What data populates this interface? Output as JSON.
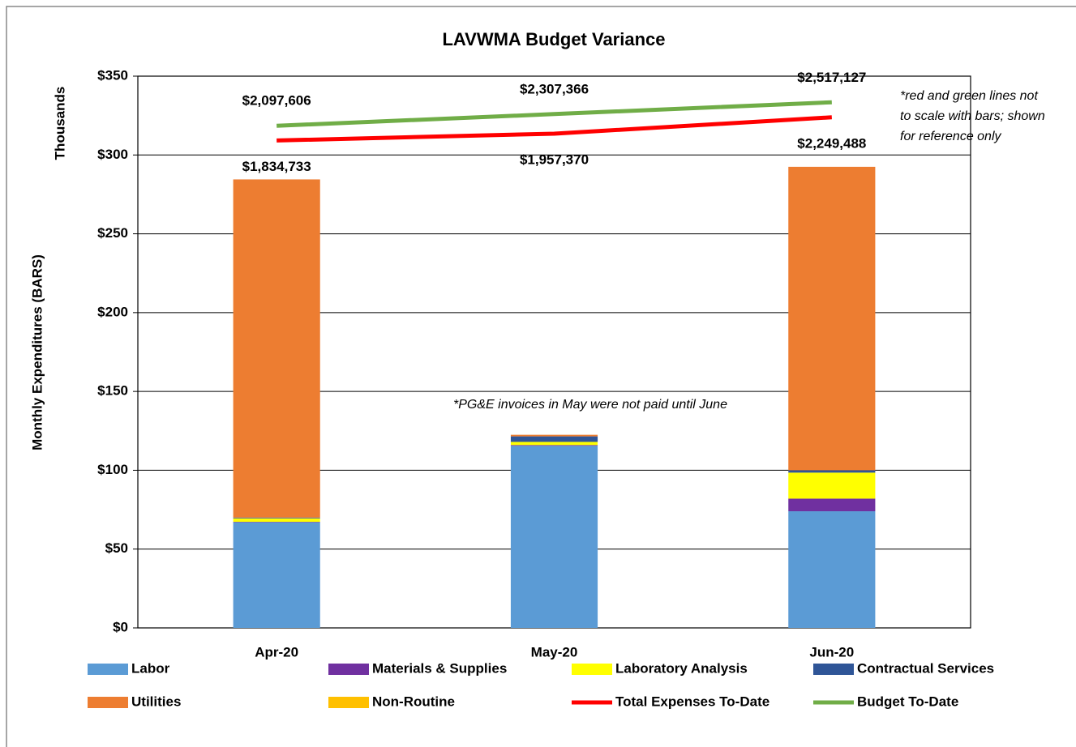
{
  "chart_data": {
    "type": "bar",
    "stacked": true,
    "title": "LAVWMA Budget Variance",
    "y_label": "Monthly Expenditures (BARS)",
    "y_unit_label": "Thousands",
    "categories": [
      "Apr-20",
      "May-20",
      "Jun-20"
    ],
    "ylim": [
      0,
      350
    ],
    "yticks": [
      {
        "value": 0,
        "label": "$0"
      },
      {
        "value": 50,
        "label": "$50"
      },
      {
        "value": 100,
        "label": "$100"
      },
      {
        "value": 150,
        "label": "$150"
      },
      {
        "value": 200,
        "label": "$200"
      },
      {
        "value": 250,
        "label": "$250"
      },
      {
        "value": 300,
        "label": "$300"
      },
      {
        "value": 350,
        "label": "$350"
      }
    ],
    "y2lim": [
      -6869000,
      2984000
    ],
    "grid": true,
    "series": [
      {
        "name": "Labor",
        "type": "bar",
        "color": "#5b9bd5",
        "values": [
          67,
          115.5,
          74
        ]
      },
      {
        "name": "Materials & Supplies",
        "type": "bar",
        "color": "#7030a0",
        "values": [
          0.3,
          0.5,
          8
        ]
      },
      {
        "name": "Laboratory Analysis",
        "type": "bar",
        "color": "#ffff00",
        "values": [
          2.2,
          2,
          16.5
        ]
      },
      {
        "name": "Contractual Services",
        "type": "bar",
        "color": "#2f5597",
        "values": [
          0.5,
          3.5,
          1.5
        ]
      },
      {
        "name": "Utilities",
        "type": "bar",
        "color": "#ed7d31",
        "values": [
          214.5,
          1,
          192.5
        ]
      },
      {
        "name": "Non-Routine",
        "type": "bar",
        "color": "#ffc000",
        "values": [
          0,
          0,
          0
        ]
      },
      {
        "name": "Total Expenses To-Date",
        "type": "line",
        "axis": "y2",
        "color": "#ff0000",
        "values": [
          1834733,
          1957370,
          2249488
        ],
        "value_labels": [
          "$1,834,733",
          "$1,957,370",
          "$2,249,488"
        ]
      },
      {
        "name": "Budget To-Date",
        "type": "line",
        "axis": "y2",
        "color": "#70ad47",
        "values": [
          2097606,
          2307366,
          2517127
        ],
        "value_labels": [
          "$2,097,606",
          "$2,307,366",
          "$2,517,127"
        ]
      }
    ],
    "annotations": [
      {
        "lines": [
          "*red and green lines not",
          "to scale with bars; shown",
          "for reference only"
        ]
      },
      {
        "lines": [
          "*PG&E invoices in May were not paid until June"
        ]
      }
    ]
  }
}
